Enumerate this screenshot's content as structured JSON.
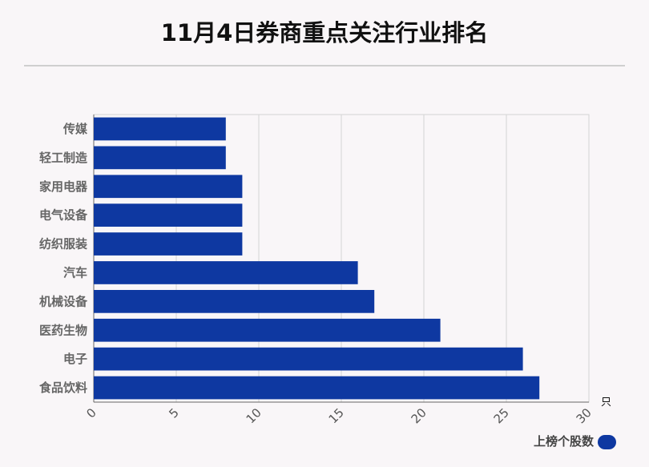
{
  "chart_data": {
    "type": "bar",
    "orientation": "horizontal",
    "title": "11月4日券商重点关注行业排名",
    "categories": [
      "传媒",
      "轻工制造",
      "家用电器",
      "电气设备",
      "纺织服装",
      "汽车",
      "机械设备",
      "医药生物",
      "电子",
      "食品饮料"
    ],
    "series": [
      {
        "name": "上榜个股数",
        "values": [
          8,
          8,
          9,
          9,
          9,
          16,
          17,
          21,
          26,
          27
        ],
        "color": "#0e38a1"
      }
    ],
    "xlim": [
      0,
      30
    ],
    "x_ticks": [
      "0",
      "5",
      "10",
      "15",
      "20",
      "25",
      "30"
    ],
    "x_unit": "只",
    "grid": true,
    "legend_position": "bottom-right"
  }
}
